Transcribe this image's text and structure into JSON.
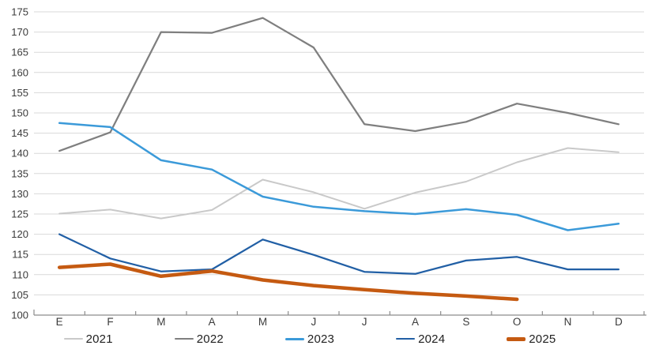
{
  "chart_data": {
    "type": "line",
    "title": "",
    "xlabel": "",
    "ylabel": "",
    "categories": [
      "E",
      "F",
      "M",
      "A",
      "M",
      "J",
      "J",
      "A",
      "S",
      "O",
      "N",
      "D"
    ],
    "series": [
      {
        "name": "2021",
        "color": "#c9c9c9",
        "stroke_width": 2,
        "values": [
          125.1,
          126.1,
          123.9,
          126.0,
          133.5,
          130.4,
          126.3,
          130.3,
          133.0,
          137.8,
          141.3,
          140.3
        ]
      },
      {
        "name": "2022",
        "color": "#7f7f7f",
        "stroke_width": 2.25,
        "values": [
          140.6,
          145.2,
          170.0,
          169.8,
          173.5,
          166.2,
          147.2,
          145.5,
          147.8,
          152.3,
          150.0,
          147.2
        ]
      },
      {
        "name": "2023",
        "color": "#3b9ad9",
        "stroke_width": 2.5,
        "values": [
          147.5,
          146.5,
          138.3,
          136.0,
          129.3,
          126.8,
          125.7,
          125.0,
          126.2,
          124.8,
          121.0,
          122.6
        ]
      },
      {
        "name": "2024",
        "color": "#215fa5",
        "stroke_width": 2.25,
        "values": [
          120.0,
          114.0,
          110.8,
          111.3,
          118.7,
          114.9,
          110.7,
          110.2,
          113.5,
          114.4,
          111.3,
          111.3
        ]
      },
      {
        "name": "2025",
        "color": "#c55a11",
        "stroke_width": 4.5,
        "values": [
          111.8,
          112.6,
          109.6,
          110.9,
          108.7,
          107.3,
          106.3,
          105.4,
          104.7,
          103.9
        ]
      }
    ],
    "ylim": [
      100,
      175
    ],
    "ytick_step": 5,
    "grid": "horizontal",
    "legend_position": "bottom"
  },
  "style_colors": {
    "gridline": "#d9d9d9",
    "axis_line": "#8c8c8c",
    "tick_label": "#3b3b3b",
    "background": "#ffffff"
  }
}
